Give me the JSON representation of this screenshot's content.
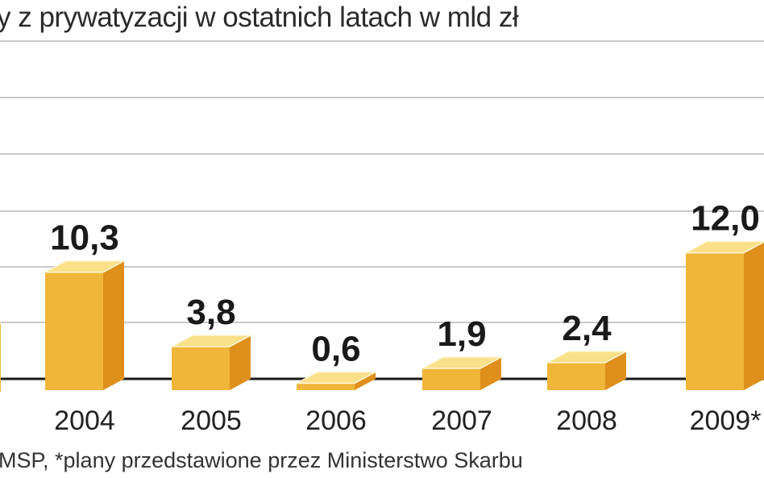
{
  "title": "y z prywatyzacji w ostatnich latach w mld zł",
  "source": "MSP, *plany przedstawione przez Ministerstwo Skarbu",
  "colors": {
    "front": "#f0b63a",
    "side": "#de8f1c",
    "top": "#fbe08a",
    "edge": "#fff7d8"
  },
  "chart_data": {
    "type": "bar",
    "categories": [
      "2004",
      "2005",
      "2006",
      "2007",
      "2008",
      "2009*"
    ],
    "values": [
      10.3,
      3.8,
      0.6,
      1.9,
      2.4,
      12.0
    ],
    "value_labels": [
      "10,3",
      "3,8",
      "0,6",
      "1,9",
      "2,4",
      "12,0"
    ],
    "title": "y z prywatyzacji w ostatnich latach w mld zł",
    "xlabel": "",
    "ylabel": "",
    "grid": true
  }
}
